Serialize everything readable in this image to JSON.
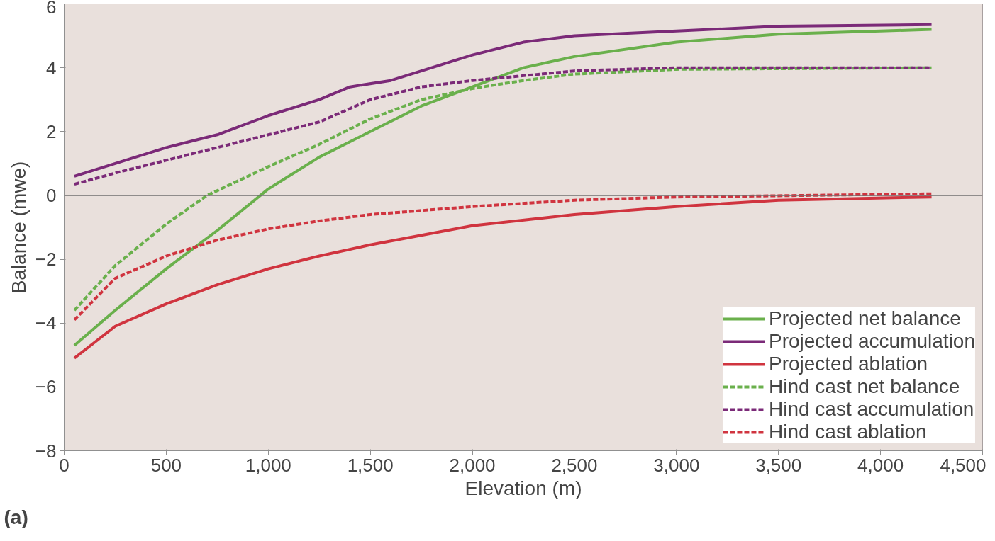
{
  "chart_data": {
    "type": "line",
    "xlabel": "Elevation (m)",
    "ylabel": "Balance (mwe)",
    "xlim": [
      0,
      4500
    ],
    "ylim": [
      -8,
      6
    ],
    "xticks": [
      0,
      {
        "value": 500,
        "label": "500"
      },
      {
        "value": 1000,
        "label": "1,000"
      },
      {
        "value": 1500,
        "label": "1,500"
      },
      {
        "value": 2000,
        "label": "2,000"
      },
      {
        "value": 2500,
        "label": "2,500"
      },
      {
        "value": 3000,
        "label": "3,000"
      },
      {
        "value": 3500,
        "label": "3,500"
      },
      {
        "value": 4000,
        "label": "4,000"
      },
      {
        "value": 4500,
        "label": "4,500"
      }
    ],
    "yticks": [
      {
        "value": -8,
        "label": "−8"
      },
      {
        "value": -6,
        "label": "−6"
      },
      {
        "value": -4,
        "label": "−4"
      },
      {
        "value": -2,
        "label": "−2"
      },
      0,
      2,
      4,
      6
    ],
    "grid": false,
    "legend": "bottom right",
    "marker": "none",
    "ref_lines": [
      {
        "axis": "y",
        "value": 0,
        "color": "#707070"
      }
    ],
    "annotations": [
      "(a)"
    ],
    "series": [
      {
        "name": "Projected net balance",
        "color": "#6ab04c",
        "line_style": "solid",
        "x": [
          50,
          250,
          500,
          750,
          1000,
          1250,
          1500,
          1750,
          2000,
          2250,
          2500,
          3000,
          3500,
          4000,
          4250
        ],
        "values": [
          -4.7,
          -3.6,
          -2.3,
          -1.1,
          0.2,
          1.2,
          2.0,
          2.8,
          3.4,
          4.0,
          4.35,
          4.8,
          5.05,
          5.15,
          5.2
        ]
      },
      {
        "name": "Projected accumulation",
        "color": "#7b2a78",
        "line_style": "solid",
        "x": [
          50,
          250,
          500,
          750,
          1000,
          1250,
          1400,
          1600,
          1800,
          2000,
          2250,
          2500,
          3000,
          3500,
          4250
        ],
        "values": [
          0.6,
          1.0,
          1.5,
          1.9,
          2.5,
          3.0,
          3.4,
          3.6,
          4.0,
          4.4,
          4.8,
          5.0,
          5.15,
          5.3,
          5.35
        ]
      },
      {
        "name": "Projected ablation",
        "color": "#d0343f",
        "line_style": "solid",
        "x": [
          50,
          250,
          500,
          750,
          1000,
          1250,
          1500,
          1750,
          2000,
          2500,
          3000,
          3500,
          4250
        ],
        "values": [
          -5.1,
          -4.1,
          -3.4,
          -2.8,
          -2.3,
          -1.9,
          -1.55,
          -1.25,
          -0.95,
          -0.6,
          -0.35,
          -0.15,
          -0.05
        ]
      },
      {
        "name": "Hind cast net balance",
        "color": "#6ab04c",
        "line_style": "dashed",
        "x": [
          50,
          250,
          500,
          700,
          1000,
          1250,
          1500,
          1750,
          2000,
          2250,
          2500,
          3000,
          4250
        ],
        "values": [
          -3.6,
          -2.2,
          -0.9,
          0.0,
          0.9,
          1.6,
          2.4,
          3.0,
          3.35,
          3.6,
          3.8,
          3.95,
          4.0
        ]
      },
      {
        "name": "Hind cast accumulation",
        "color": "#7b2a78",
        "line_style": "dashed",
        "x": [
          50,
          250,
          500,
          750,
          1000,
          1250,
          1500,
          1750,
          2000,
          2500,
          3000,
          4250
        ],
        "values": [
          0.35,
          0.7,
          1.1,
          1.5,
          1.9,
          2.3,
          3.0,
          3.4,
          3.6,
          3.9,
          4.0,
          4.0
        ]
      },
      {
        "name": "Hind cast ablation",
        "color": "#d0343f",
        "line_style": "dashed",
        "x": [
          50,
          250,
          500,
          750,
          1000,
          1250,
          1500,
          2000,
          2500,
          3000,
          4250
        ],
        "values": [
          -3.9,
          -2.6,
          -1.9,
          -1.4,
          -1.05,
          -0.8,
          -0.6,
          -0.35,
          -0.15,
          -0.05,
          0.05
        ]
      }
    ]
  }
}
